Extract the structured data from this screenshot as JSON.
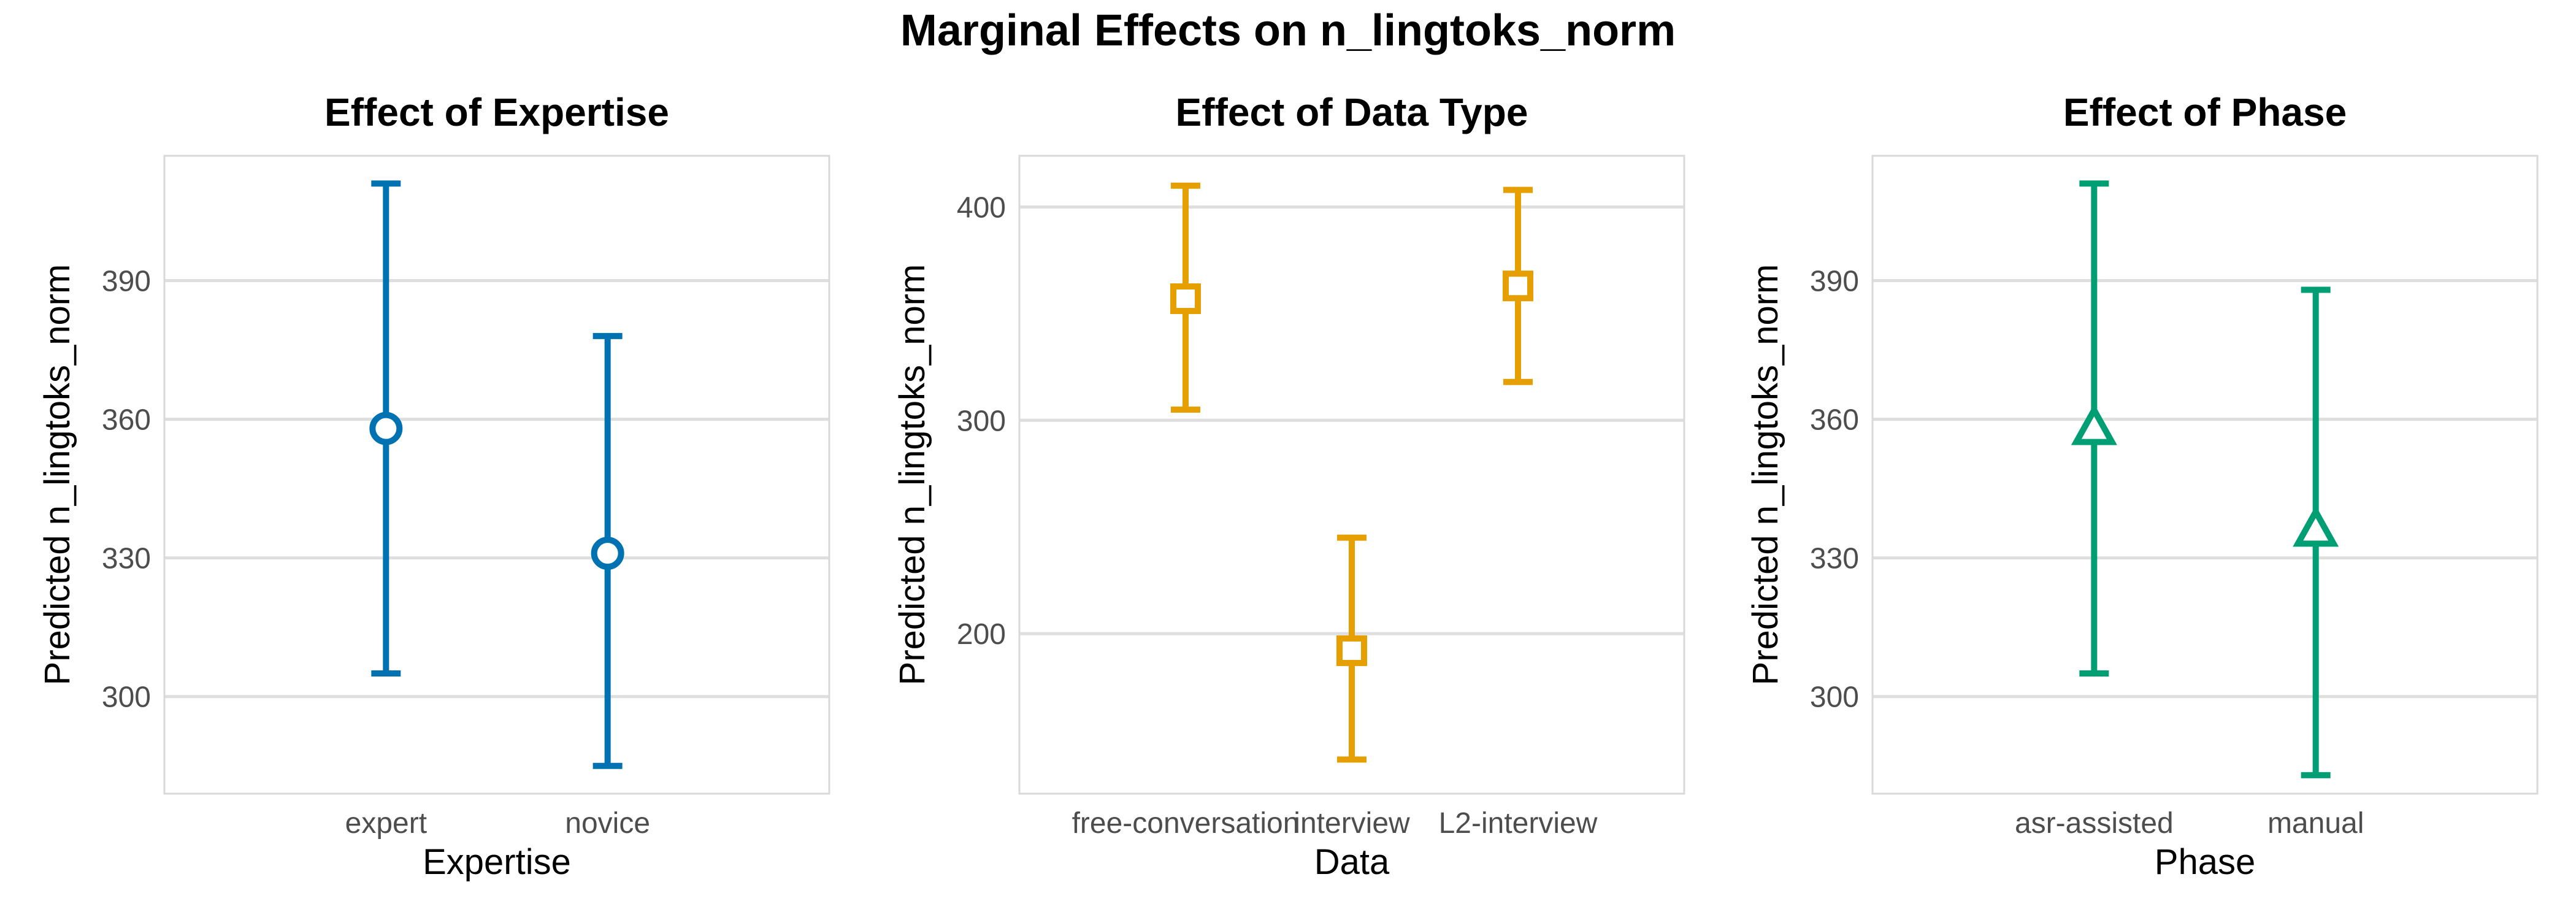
{
  "title": "Marginal Effects on n_lingtoks_norm",
  "colors": {
    "grid": "#dedede",
    "border": "#d9d9d9",
    "tick_text": "#4d4d4d"
  },
  "chart_data": [
    {
      "type": "errorbar",
      "title": "Effect of Expertise",
      "xlabel": "Expertise",
      "ylabel": "Predicted n_lingtoks_norm",
      "categories": [
        "expert",
        "novice"
      ],
      "values": [
        358,
        331
      ],
      "lower": [
        305,
        285
      ],
      "upper": [
        411,
        378
      ],
      "ylim": [
        279,
        417
      ],
      "yticks": [
        300,
        330,
        360,
        390
      ],
      "color": "#0072B2",
      "marker": "circle"
    },
    {
      "type": "errorbar",
      "title": "Effect of Data Type",
      "xlabel": "Data",
      "ylabel": "Predicted n_lingtoks_norm",
      "categories": [
        "free-conversation",
        "interview",
        "L2-interview"
      ],
      "values": [
        357,
        192,
        363
      ],
      "lower": [
        305,
        141,
        318
      ],
      "upper": [
        410,
        245,
        408
      ],
      "ylim": [
        125,
        424
      ],
      "yticks": [
        200,
        300,
        400
      ],
      "color": "#E69F00",
      "marker": "square"
    },
    {
      "type": "errorbar",
      "title": "Effect of Phase",
      "xlabel": "Phase",
      "ylabel": "Predicted n_lingtoks_norm",
      "categories": [
        "asr-assisted",
        "manual"
      ],
      "values": [
        358,
        336
      ],
      "lower": [
        305,
        283
      ],
      "upper": [
        411,
        388
      ],
      "ylim": [
        279,
        417
      ],
      "yticks": [
        300,
        330,
        360,
        390
      ],
      "color": "#009E73",
      "marker": "triangle"
    }
  ]
}
